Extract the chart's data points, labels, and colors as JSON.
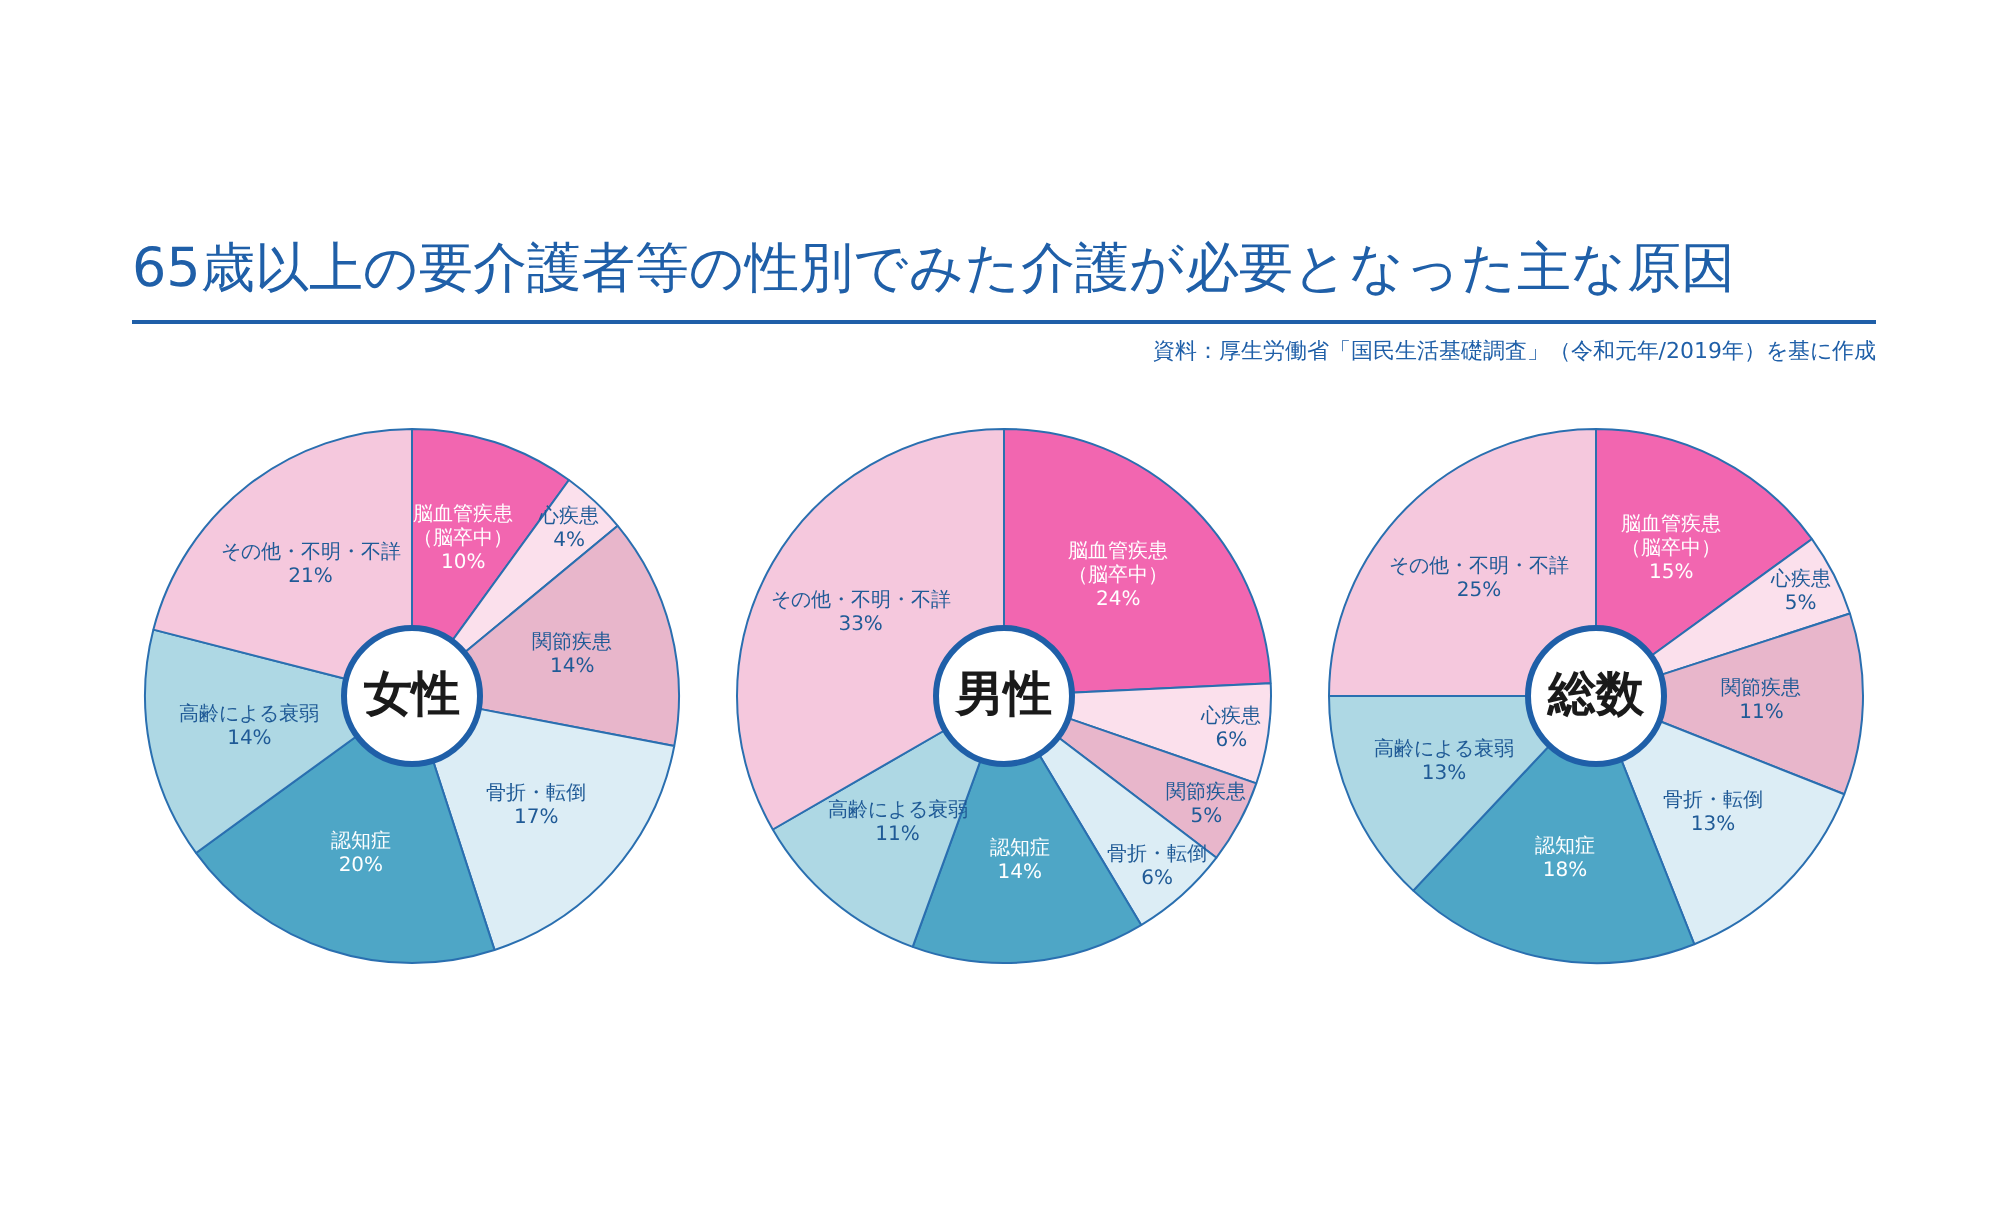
{
  "chart_data": [
    {
      "type": "donut",
      "title": "女性",
      "annotations": [
        "65歳以上の要介護者等の性別でみた介護が必要となった主な原因",
        "資料：厚生労働省「国民生活基礎調査」（令和元年/2019年）を基に作成"
      ],
      "categories": [
        "脳血管疾患（脳卒中）",
        "心疾患",
        "関節疾患",
        "骨折・転倒",
        "認知症",
        "高齢による衰弱",
        "その他・不明・不詳"
      ],
      "values": [
        10,
        4,
        14,
        17,
        20,
        14,
        21
      ],
      "value_labels": [
        "10%",
        "4%",
        "14%",
        "17%",
        "20%",
        "14%",
        "21%"
      ],
      "colors": [
        "#f266b0",
        "#fbe0ec",
        "#e8b6cb",
        "#dcedf5",
        "#4ea6c6",
        "#aed8e4",
        "#f5c8dd"
      ],
      "legend": false
    },
    {
      "type": "donut",
      "title": "男性",
      "categories": [
        "脳血管疾患（脳卒中）",
        "心疾患",
        "関節疾患",
        "骨折・転倒",
        "認知症",
        "高齢による衰弱",
        "その他・不明・不詳"
      ],
      "values": [
        24,
        6,
        5,
        6,
        14,
        11,
        33
      ],
      "value_labels": [
        "24%",
        "6%",
        "5%",
        "6%",
        "14%",
        "11%",
        "33%"
      ],
      "colors": [
        "#f266b0",
        "#fbe0ec",
        "#e8b6cb",
        "#dcedf5",
        "#4ea6c6",
        "#aed8e4",
        "#f5c8dd"
      ],
      "legend": false
    },
    {
      "type": "donut",
      "title": "総数",
      "categories": [
        "脳血管疾患（脳卒中）",
        "心疾患",
        "関節疾患",
        "骨折・転倒",
        "認知症",
        "高齢による衰弱",
        "その他・不明・不詳"
      ],
      "values": [
        15,
        5,
        11,
        13,
        18,
        13,
        25
      ],
      "value_labels": [
        "15%",
        "5%",
        "11%",
        "13%",
        "18%",
        "13%",
        "25%"
      ],
      "colors": [
        "#f266b0",
        "#fbe0ec",
        "#e8b6cb",
        "#dcedf5",
        "#4ea6c6",
        "#aed8e4",
        "#f5c8dd"
      ],
      "legend": false
    }
  ]
}
